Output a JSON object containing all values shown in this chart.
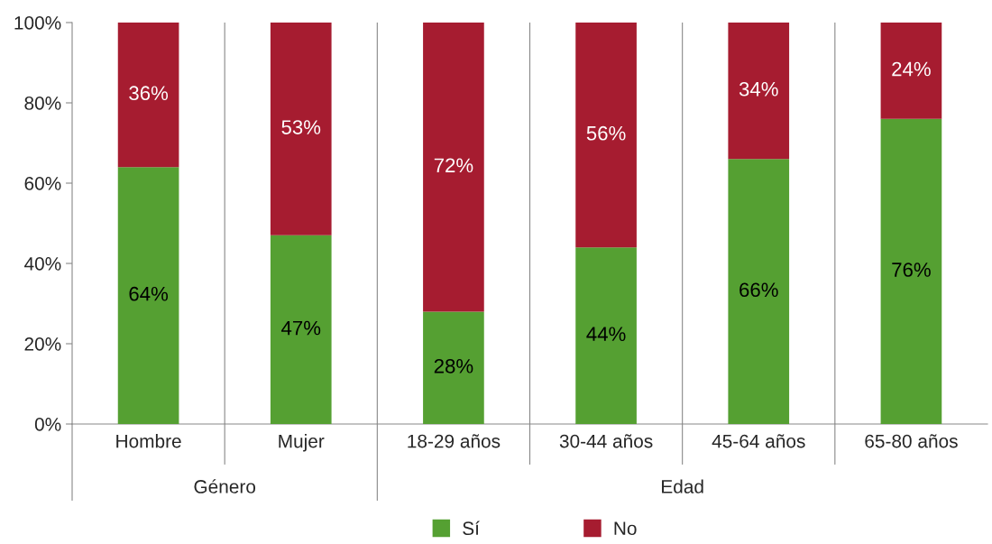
{
  "chart_data": {
    "type": "bar",
    "stacked": true,
    "categories": [
      "Hombre",
      "Mujer",
      "18-29 años",
      "30-44 años",
      "45-64 años",
      "65-80 años"
    ],
    "series": [
      {
        "name": "Sí",
        "color": "#55a032",
        "values": [
          64,
          47,
          28,
          44,
          66,
          76
        ],
        "value_labels": [
          "64%",
          "47%",
          "28%",
          "44%",
          "66%",
          "76%"
        ]
      },
      {
        "name": "No",
        "color": "#a61c30",
        "values": [
          36,
          53,
          72,
          56,
          34,
          24
        ],
        "value_labels": [
          "36%",
          "53%",
          "72%",
          "56%",
          "34%",
          "24%"
        ]
      }
    ],
    "ylim": [
      0,
      100
    ],
    "yticks": [
      {
        "value": 0,
        "label": "0%"
      },
      {
        "value": 20,
        "label": "20%"
      },
      {
        "value": 40,
        "label": "40%"
      },
      {
        "value": 60,
        "label": "60%"
      },
      {
        "value": 80,
        "label": "80%"
      },
      {
        "value": 100,
        "label": "100%"
      }
    ],
    "annotations": [
      "Género",
      "Edad"
    ],
    "grid": "x",
    "legend": "bottom",
    "marker": "square"
  }
}
